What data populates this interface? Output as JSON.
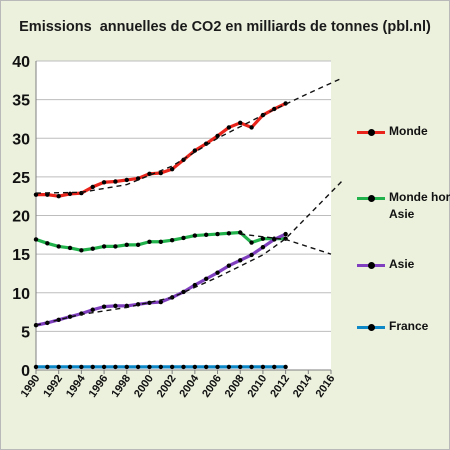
{
  "chart_data": {
    "type": "line",
    "title": "Emissions  annuelles de CO2 en milliards de tonnes (pbl.nl)",
    "xlabel": "",
    "ylabel": "",
    "xlim": [
      1990,
      2016
    ],
    "ylim": [
      0,
      40
    ],
    "x_ticks": [
      "1990",
      "1992",
      "1994",
      "1996",
      "1998",
      "2000",
      "2002",
      "2004",
      "2006",
      "2008",
      "2010",
      "2012",
      "2014",
      "2016"
    ],
    "y_ticks": [
      "0",
      "5",
      "10",
      "15",
      "20",
      "25",
      "30",
      "35",
      "40"
    ],
    "grid": "horizontal",
    "legend_position": "right",
    "x": [
      1990,
      1991,
      1992,
      1993,
      1994,
      1995,
      1996,
      1997,
      1998,
      1999,
      2000,
      2001,
      2002,
      2003,
      2004,
      2005,
      2006,
      2007,
      2008,
      2009,
      2010,
      2011,
      2012
    ],
    "series": [
      {
        "name": "Monde",
        "color": "#e8241b",
        "values": [
          22.7,
          22.7,
          22.5,
          22.8,
          22.9,
          23.7,
          24.3,
          24.4,
          24.6,
          24.8,
          25.4,
          25.5,
          26.0,
          27.2,
          28.4,
          29.3,
          30.3,
          31.4,
          32.0,
          31.4,
          33.0,
          33.8,
          34.5
        ]
      },
      {
        "name": "Monde hors Asie",
        "color": "#22b24c",
        "values": [
          16.9,
          16.4,
          16.0,
          15.8,
          15.5,
          15.7,
          16.0,
          16.0,
          16.2,
          16.2,
          16.6,
          16.6,
          16.8,
          17.1,
          17.4,
          17.5,
          17.6,
          17.7,
          17.8,
          16.5,
          17.0,
          17.0,
          17.0
        ]
      },
      {
        "name": "Asie",
        "color": "#7f3fbf",
        "values": [
          5.8,
          6.1,
          6.5,
          6.9,
          7.3,
          7.8,
          8.2,
          8.3,
          8.3,
          8.5,
          8.7,
          8.8,
          9.4,
          10.1,
          11.0,
          11.8,
          12.6,
          13.5,
          14.2,
          14.9,
          15.9,
          16.9,
          17.6
        ]
      },
      {
        "name": "France",
        "color": "#0f88c8",
        "values": [
          0.4,
          0.4,
          0.4,
          0.4,
          0.4,
          0.4,
          0.4,
          0.4,
          0.4,
          0.4,
          0.4,
          0.4,
          0.4,
          0.4,
          0.4,
          0.4,
          0.4,
          0.4,
          0.4,
          0.4,
          0.4,
          0.4,
          0.4
        ]
      }
    ],
    "trends": [
      {
        "of": "Monde",
        "points": [
          [
            1990,
            22.9
          ],
          [
            1994,
            23.0
          ],
          [
            1998,
            24.0
          ],
          [
            2002,
            26.4
          ],
          [
            2006,
            30.0
          ],
          [
            2010,
            33.0
          ],
          [
            2014,
            35.8
          ],
          [
            2017,
            37.8
          ]
        ]
      },
      {
        "of": "Monde hors Asie",
        "points": [
          [
            2008,
            17.6
          ],
          [
            2012,
            16.9
          ],
          [
            2016,
            15.0
          ]
        ]
      },
      {
        "of": "Asie",
        "points": [
          [
            1990,
            5.8
          ],
          [
            1994,
            7.2
          ],
          [
            1998,
            8.1
          ],
          [
            2002,
            9.4
          ],
          [
            2006,
            12.0
          ],
          [
            2010,
            14.9
          ],
          [
            2012,
            17.0
          ],
          [
            2014,
            20.0
          ],
          [
            2017,
            24.5
          ]
        ]
      }
    ]
  }
}
